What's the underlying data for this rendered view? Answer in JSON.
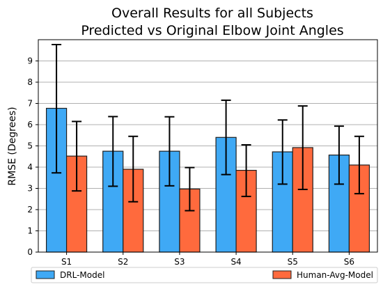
{
  "chart_data": {
    "type": "bar",
    "title_line1": "Overall Results for all Subjects",
    "title_line2": "Predicted vs Original Elbow Joint Angles",
    "xlabel": "",
    "ylabel": "RMSE (Degrees)",
    "ylim": [
      0,
      10
    ],
    "yticks": [
      0,
      1,
      2,
      3,
      4,
      5,
      6,
      7,
      8,
      9
    ],
    "grid": "horizontal",
    "legend_position": "bottom",
    "categories": [
      "S1",
      "S2",
      "S3",
      "S4",
      "S5",
      "S6"
    ],
    "series": [
      {
        "name": "DRL-Model",
        "color": "#3fa9f5",
        "values": [
          6.77,
          4.75,
          4.75,
          5.4,
          4.72,
          4.57
        ],
        "err_low": [
          3.73,
          3.1,
          3.12,
          3.65,
          3.2,
          3.2
        ],
        "err_high": [
          9.77,
          6.38,
          6.37,
          7.15,
          6.22,
          5.93
        ]
      },
      {
        "name": "Human-Avg-Model",
        "color": "#ff6a3d",
        "values": [
          4.52,
          3.9,
          2.97,
          3.85,
          4.92,
          4.1
        ],
        "err_low": [
          2.88,
          2.37,
          1.95,
          2.62,
          2.95,
          2.75
        ],
        "err_high": [
          6.15,
          5.45,
          3.98,
          5.05,
          6.88,
          5.45
        ]
      }
    ]
  }
}
